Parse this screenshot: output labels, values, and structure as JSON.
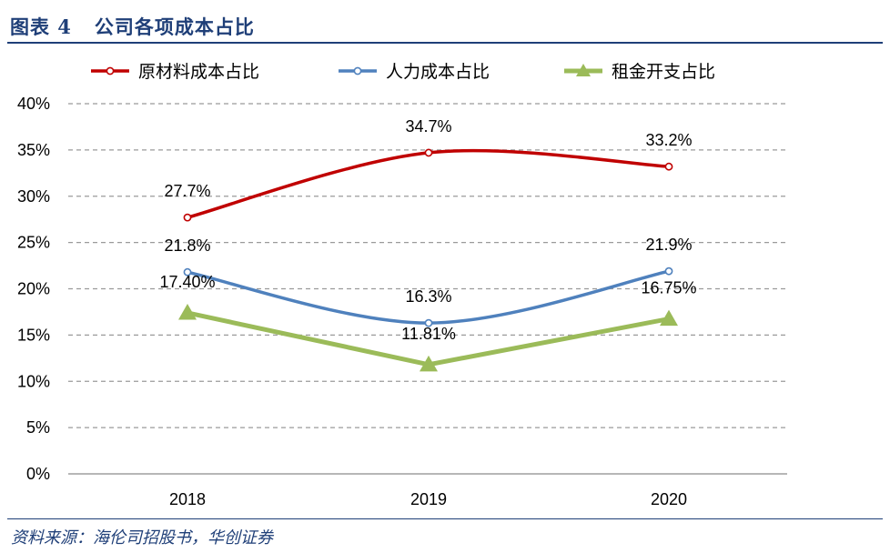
{
  "header": {
    "title": "图表 4   公司各项成本占比"
  },
  "footer": {
    "source": "资料来源：海伦司招股书，华创证券"
  },
  "chart_data": {
    "type": "line",
    "title": "公司各项成本占比",
    "categories": [
      "2018",
      "2019",
      "2020"
    ],
    "ylim": [
      0,
      40
    ],
    "yticks": [
      0,
      5,
      10,
      15,
      20,
      25,
      30,
      35,
      40
    ],
    "ytick_labels": [
      "0%",
      "5%",
      "10%",
      "15%",
      "20%",
      "25%",
      "30%",
      "35%",
      "40%"
    ],
    "grid": true,
    "legend_position": "top",
    "series": [
      {
        "name": "原材料成本占比",
        "values": [
          27.7,
          34.7,
          33.2
        ],
        "labels": [
          "27.7%",
          "34.7%",
          "33.2%"
        ],
        "color": "#c00000",
        "marker": "circle",
        "smooth": true
      },
      {
        "name": "人力成本占比",
        "values": [
          21.8,
          16.3,
          21.9
        ],
        "labels": [
          "21.8%",
          "16.3%",
          "21.9%"
        ],
        "color": "#4f81bd",
        "marker": "circle",
        "smooth": true
      },
      {
        "name": "租金开支占比",
        "values": [
          17.4,
          11.81,
          16.75
        ],
        "labels": [
          "17.40%",
          "11.81%",
          "16.75%"
        ],
        "color": "#9bbb59",
        "marker": "triangle",
        "smooth": false
      }
    ]
  }
}
